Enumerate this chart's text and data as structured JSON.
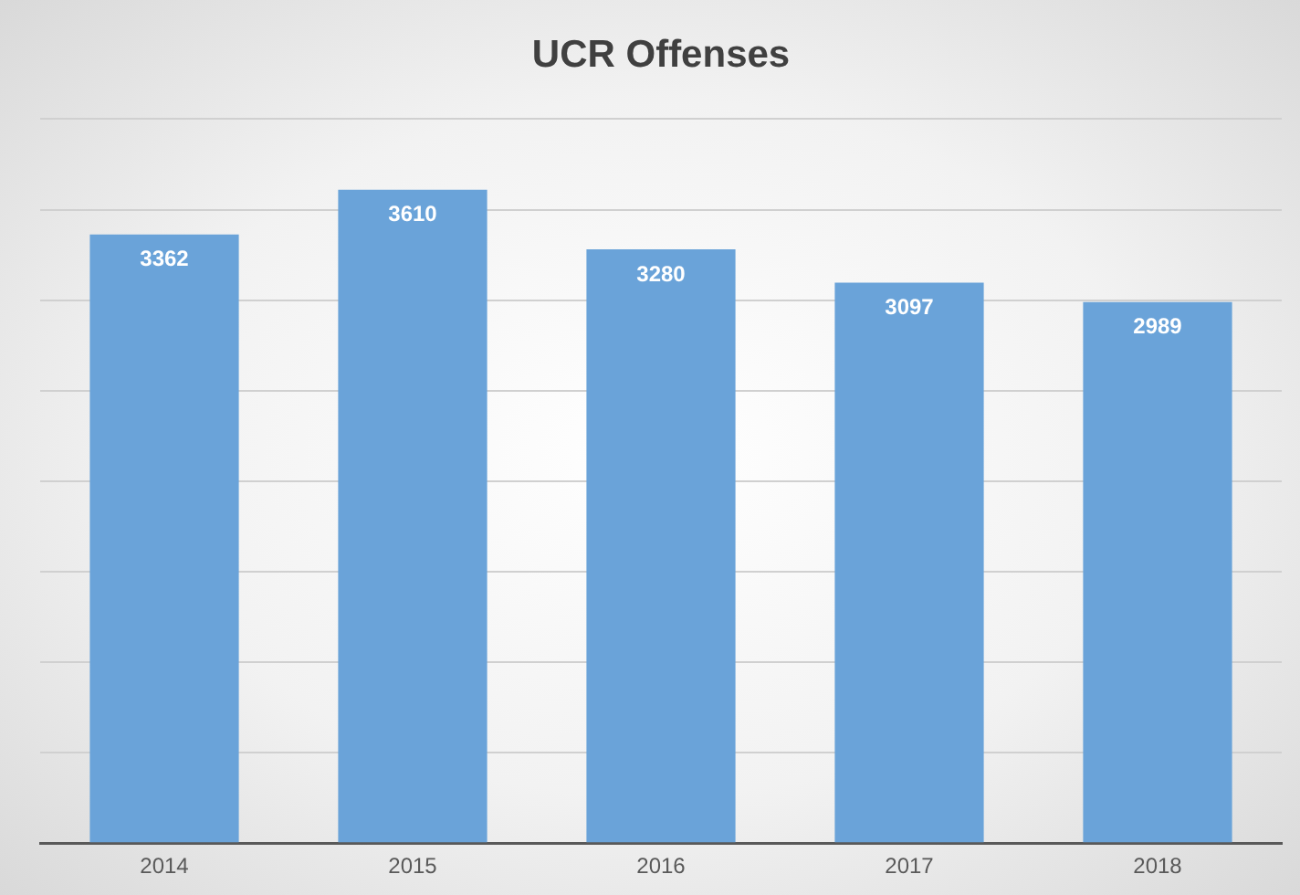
{
  "chart_data": {
    "type": "bar",
    "title": "UCR Offenses",
    "categories": [
      "2014",
      "2015",
      "2016",
      "2017",
      "2018"
    ],
    "values": [
      3362,
      3610,
      3280,
      3097,
      2989
    ],
    "color": "#6aa3d9",
    "ylim": [
      0,
      4000
    ],
    "yticks": [
      {
        "value": 0,
        "label": null
      },
      {
        "value": 500,
        "label": null
      },
      {
        "value": 1000,
        "label": null
      },
      {
        "value": 1500,
        "label": null
      },
      {
        "value": 2000,
        "label": null
      },
      {
        "value": 2500,
        "label": null
      },
      {
        "value": 3000,
        "label": null
      },
      {
        "value": 3500,
        "label": null
      },
      {
        "value": 4000,
        "label": null
      }
    ],
    "grid": "y",
    "tick_labels": "x",
    "data_labels": true,
    "legend": false
  }
}
